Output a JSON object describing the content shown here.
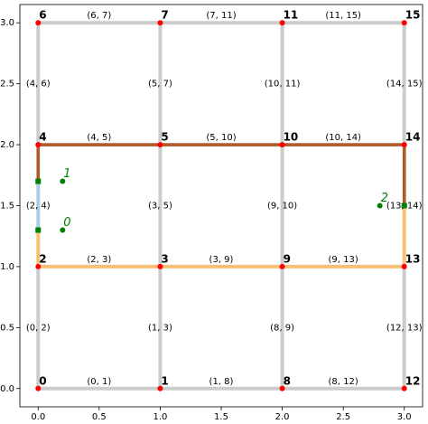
{
  "chart_data": {
    "type": "graph",
    "xlim": [
      -0.15,
      3.15
    ],
    "ylim": [
      -0.15,
      3.15
    ],
    "xticks": [
      {
        "value": 0,
        "label": "0.0"
      },
      0.5,
      {
        "value": 1,
        "label": "1.0"
      },
      1.5,
      {
        "value": 2,
        "label": "2.0"
      },
      2.5,
      {
        "value": 3,
        "label": "3.0"
      }
    ],
    "yticks": [
      {
        "value": 0,
        "label": "0.0"
      },
      0.5,
      {
        "value": 1,
        "label": "1.0"
      },
      1.5,
      {
        "value": 2,
        "label": "2.0"
      },
      2.5,
      {
        "value": 3,
        "label": "3.0"
      }
    ],
    "edge_color": "#cccccc",
    "node_color": "#ff0000",
    "marker_color": "#008000",
    "nodes": [
      {
        "label": "0",
        "x": 0,
        "y": 0
      },
      {
        "label": "1",
        "x": 1,
        "y": 0
      },
      {
        "label": "2",
        "x": 0,
        "y": 1
      },
      {
        "label": "3",
        "x": 1,
        "y": 1
      },
      {
        "label": "4",
        "x": 0,
        "y": 2
      },
      {
        "label": "5",
        "x": 1,
        "y": 2
      },
      {
        "label": "6",
        "x": 0,
        "y": 3
      },
      {
        "label": "7",
        "x": 1,
        "y": 3
      },
      {
        "label": "8",
        "x": 2,
        "y": 0
      },
      {
        "label": "9",
        "x": 2,
        "y": 1
      },
      {
        "label": "10",
        "x": 2,
        "y": 2
      },
      {
        "label": "11",
        "x": 2,
        "y": 3
      },
      {
        "label": "12",
        "x": 3,
        "y": 0
      },
      {
        "label": "13",
        "x": 3,
        "y": 1
      },
      {
        "label": "14",
        "x": 3,
        "y": 2
      },
      {
        "label": "15",
        "x": 3,
        "y": 3
      }
    ],
    "edges": [
      {
        "label": "(0, 1)",
        "source": 0,
        "target": 1
      },
      {
        "label": "(1, 8)",
        "source": 1,
        "target": 8
      },
      {
        "label": "(8, 12)",
        "source": 8,
        "target": 12
      },
      {
        "label": "(0, 2)",
        "source": 0,
        "target": 2
      },
      {
        "label": "(1, 3)",
        "source": 1,
        "target": 3
      },
      {
        "label": "(8, 9)",
        "source": 8,
        "target": 9
      },
      {
        "label": "(12, 13)",
        "source": 12,
        "target": 13
      },
      {
        "label": "(2, 3)",
        "source": 2,
        "target": 3
      },
      {
        "label": "(3, 9)",
        "source": 3,
        "target": 9
      },
      {
        "label": "(9, 13)",
        "source": 9,
        "target": 13
      },
      {
        "label": "(2, 4)",
        "source": 2,
        "target": 4
      },
      {
        "label": "(3, 5)",
        "source": 3,
        "target": 5
      },
      {
        "label": "(9, 10)",
        "source": 9,
        "target": 10
      },
      {
        "label": "(13, 14)",
        "source": 13,
        "target": 14
      },
      {
        "label": "(4, 5)",
        "source": 4,
        "target": 5
      },
      {
        "label": "(5, 10)",
        "source": 5,
        "target": 10
      },
      {
        "label": "(10, 14)",
        "source": 10,
        "target": 14
      },
      {
        "label": "(4, 6)",
        "source": 4,
        "target": 6
      },
      {
        "label": "(5, 7)",
        "source": 5,
        "target": 7
      },
      {
        "label": "(10, 11)",
        "source": 10,
        "target": 11
      },
      {
        "label": "(14, 15)",
        "source": 14,
        "target": 15
      },
      {
        "label": "(6, 7)",
        "source": 6,
        "target": 7
      },
      {
        "label": "(7, 11)",
        "source": 7,
        "target": 11
      },
      {
        "label": "(11, 15)",
        "source": 11,
        "target": 15
      }
    ],
    "paths": [
      {
        "color": "#fdbf6f",
        "x": [
          0,
          0,
          1,
          2,
          3,
          3
        ],
        "y": [
          1.3,
          1,
          1,
          1,
          1,
          1.5
        ]
      },
      {
        "color": "#b15928",
        "x": [
          0,
          0,
          1,
          2,
          3,
          3
        ],
        "y": [
          1.7,
          2,
          2,
          2,
          2,
          1.5
        ]
      },
      {
        "color": "#a6cee3",
        "x": [
          0,
          0
        ],
        "y": [
          1.3,
          1.7
        ]
      }
    ],
    "squares": {
      "x": [
        0,
        0,
        3
      ],
      "y": [
        1.3,
        1.7,
        1.5
      ]
    },
    "points": [
      {
        "label": "0",
        "x": 0.2,
        "y": 1.3
      },
      {
        "label": "1",
        "x": 0.2,
        "y": 1.7
      },
      {
        "label": "2",
        "x": 2.8,
        "y": 1.5
      }
    ]
  }
}
